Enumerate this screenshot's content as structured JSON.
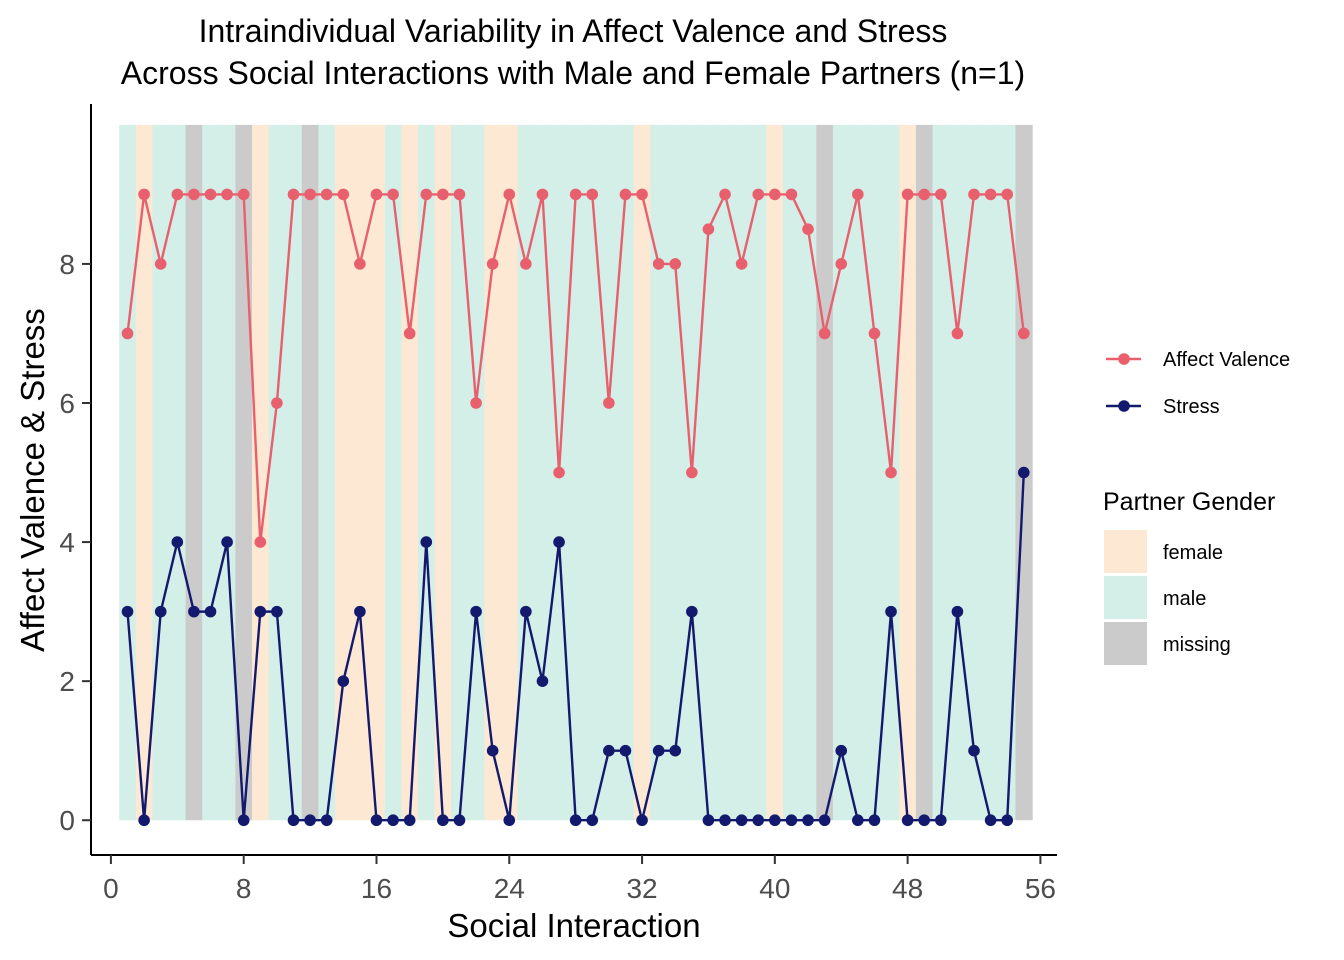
{
  "chart_data": {
    "type": "line",
    "title": "Intraindividual Variability in Affect Valence and Stress",
    "subtitle": "Across Social Interactions with Male and Female Partners (n=1)",
    "xlabel": "Social Interaction",
    "ylabel": "Affect Valence & Stress",
    "xlim": [
      -1.2,
      57
    ],
    "ylim": [
      -0.5,
      10.3
    ],
    "x_ticks": [
      0,
      8,
      16,
      24,
      32,
      40,
      48,
      56
    ],
    "x_tick_labels": [
      "0",
      "8",
      "16",
      "24",
      "32",
      "40",
      "48",
      "56"
    ],
    "y_ticks": [
      0,
      2,
      4,
      6,
      8
    ],
    "y_tick_labels": [
      "0",
      "2",
      "4",
      "6",
      "8"
    ],
    "grid": false,
    "legend_position": "right",
    "x": [
      1,
      2,
      3,
      4,
      5,
      6,
      7,
      8,
      9,
      10,
      11,
      12,
      13,
      14,
      15,
      16,
      17,
      18,
      19,
      20,
      21,
      22,
      23,
      24,
      25,
      26,
      27,
      28,
      29,
      30,
      31,
      32,
      33,
      34,
      35,
      36,
      37,
      38,
      39,
      40,
      41,
      42,
      43,
      44,
      45,
      46,
      47,
      48,
      49,
      50,
      51,
      52,
      53,
      54,
      55
    ],
    "series": [
      {
        "name": "Affect Valence",
        "color": "#e8606d",
        "values": [
          7,
          9,
          8,
          9,
          9,
          9,
          9,
          9,
          4,
          6,
          9,
          9,
          9,
          9,
          8,
          9,
          9,
          7,
          9,
          9,
          9,
          6,
          8,
          9,
          8,
          9,
          5,
          9,
          9,
          6,
          9,
          9,
          8,
          8,
          5,
          8.5,
          9,
          8,
          9,
          9,
          9,
          8.5,
          7,
          8,
          9,
          7,
          5,
          9,
          9,
          9,
          7,
          9,
          9,
          9,
          7
        ]
      },
      {
        "name": "Stress",
        "color": "#131a6e",
        "values": [
          3,
          0,
          3,
          4,
          3,
          3,
          4,
          0,
          3,
          3,
          0,
          0,
          0,
          2,
          3,
          0,
          0,
          0,
          4,
          0,
          0,
          3,
          1,
          0,
          3,
          2,
          4,
          0,
          0,
          1,
          1,
          0,
          1,
          1,
          3,
          0,
          0,
          0,
          0,
          0,
          0,
          0,
          0,
          1,
          0,
          0,
          3,
          0,
          0,
          0,
          3,
          1,
          0,
          0,
          5
        ]
      }
    ],
    "partner_gender": {
      "title": "Partner Gender",
      "legend": [
        {
          "label": "female",
          "color": "#fde8d3"
        },
        {
          "label": "male",
          "color": "#d3efe8"
        },
        {
          "label": "missing",
          "color": "#cbcbcb"
        }
      ],
      "categories": [
        "male",
        "female",
        "male",
        "male",
        "missing",
        "male",
        "male",
        "missing",
        "female",
        "male",
        "male",
        "missing",
        "male",
        "female",
        "female",
        "female",
        "male",
        "female",
        "male",
        "female",
        "male",
        "male",
        "female",
        "female",
        "male",
        "male",
        "male",
        "male",
        "male",
        "male",
        "male",
        "female",
        "male",
        "male",
        "male",
        "male",
        "male",
        "male",
        "male",
        "female",
        "male",
        "male",
        "missing",
        "male",
        "male",
        "male",
        "male",
        "female",
        "missing",
        "male",
        "male",
        "male",
        "male",
        "male",
        "missing"
      ]
    }
  }
}
